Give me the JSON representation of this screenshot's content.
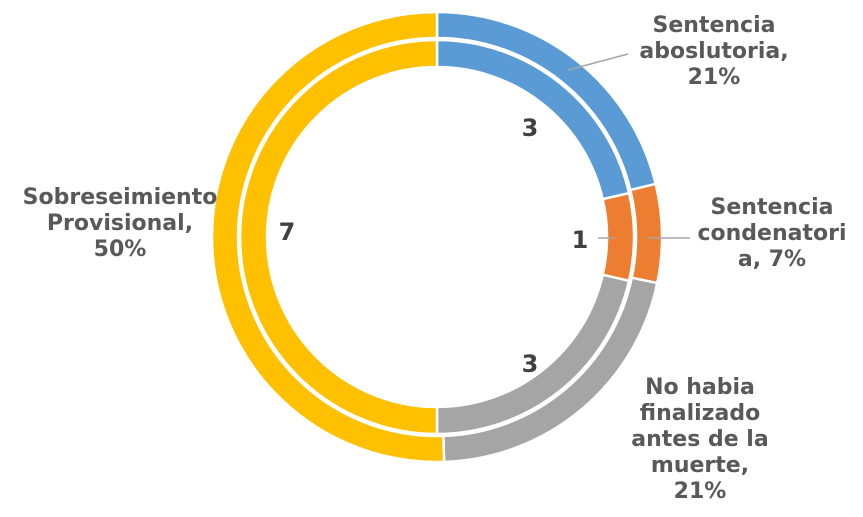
{
  "chart_data": {
    "type": "pie",
    "subtype": "double-doughnut",
    "title": "",
    "categories": [
      "Sentencia aboslutoria",
      "Sentencia condenatoria",
      "No habia finalizado antes de la muerte",
      "Sobreseimiento Provisional"
    ],
    "series": [
      {
        "values": [
          3,
          1,
          3,
          7
        ]
      },
      {
        "values": [
          21,
          7,
          21,
          50
        ]
      }
    ],
    "colors": [
      "#5B9BD5",
      "#ED7D31",
      "#A5A5A5",
      "#FFC000"
    ],
    "outer_labels": [
      [
        "Sentencia",
        "aboslutoria,",
        "21%"
      ],
      [
        "Sentencia",
        "condenatori",
        "a, 7%"
      ],
      [
        "No habia",
        "finalizado",
        "antes de la",
        "muerte,",
        "21%"
      ],
      [
        "Sobreseimiento",
        "Provisional,",
        "50%"
      ]
    ],
    "inner_labels": [
      "3",
      "1",
      "3",
      "7"
    ],
    "legend": "none"
  }
}
